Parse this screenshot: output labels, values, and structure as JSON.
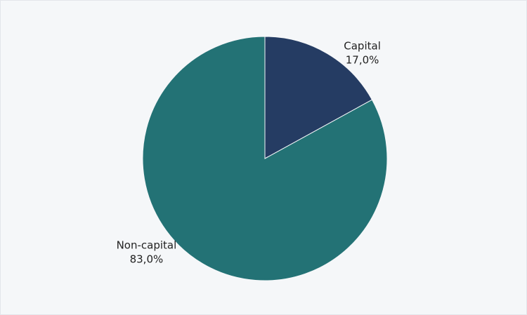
{
  "chart_data": {
    "type": "pie",
    "categories": [
      "Capital",
      "Non-capital"
    ],
    "values": [
      17,
      83
    ],
    "value_labels": [
      "17,0%",
      "83,0%"
    ],
    "colors": [
      "#253c63",
      "#237275"
    ]
  }
}
